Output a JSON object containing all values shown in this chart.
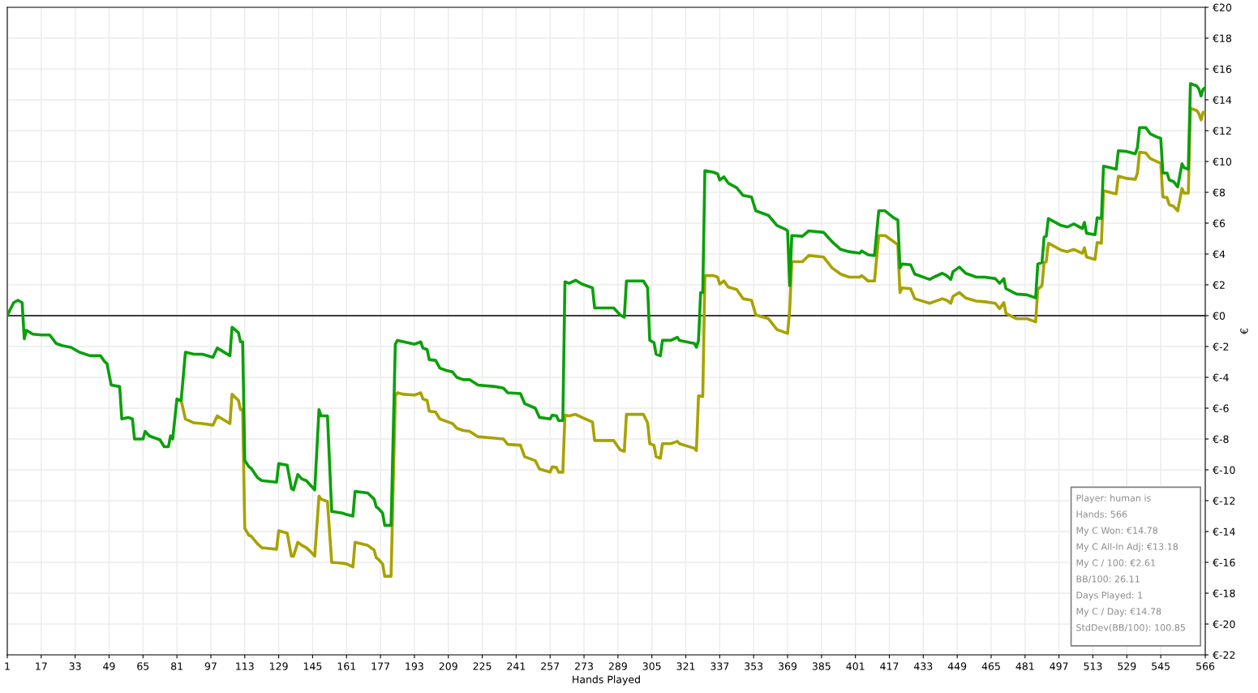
{
  "chart_data": {
    "type": "line",
    "xlabel": "Hands Played",
    "ylabel": "€",
    "xlim": [
      1,
      566
    ],
    "ylim": [
      -22,
      20
    ],
    "xticks": [
      1,
      17,
      33,
      49,
      65,
      81,
      97,
      113,
      129,
      145,
      161,
      177,
      193,
      209,
      225,
      241,
      257,
      273,
      289,
      305,
      321,
      337,
      353,
      369,
      385,
      401,
      417,
      433,
      449,
      465,
      481,
      497,
      513,
      529,
      545,
      566
    ],
    "yticks": [
      {
        "value": -22,
        "label": "€-22"
      },
      {
        "value": -20,
        "label": "€-20"
      },
      {
        "value": -18,
        "label": "€-18"
      },
      {
        "value": -16,
        "label": "€-16"
      },
      {
        "value": -14,
        "label": "€-14"
      },
      {
        "value": -12,
        "label": "€-12"
      },
      {
        "value": -10,
        "label": "€-10"
      },
      {
        "value": -8,
        "label": "€-8"
      },
      {
        "value": -6,
        "label": "€-6"
      },
      {
        "value": -4,
        "label": "€-4"
      },
      {
        "value": -2,
        "label": "€-2"
      },
      {
        "value": 0,
        "label": "€0"
      },
      {
        "value": 2,
        "label": "€2"
      },
      {
        "value": 4,
        "label": "€4"
      },
      {
        "value": 6,
        "label": "€6"
      },
      {
        "value": 8,
        "label": "€8"
      },
      {
        "value": 10,
        "label": "€10"
      },
      {
        "value": 12,
        "label": "€12"
      },
      {
        "value": 14,
        "label": "€14"
      },
      {
        "value": 16,
        "label": "€16"
      },
      {
        "value": 18,
        "label": "€18"
      },
      {
        "value": 20,
        "label": "€20"
      }
    ],
    "grid": true,
    "marker": "none",
    "line_style": "solid",
    "ref_lines": [
      {
        "axis": "y",
        "value": 0,
        "color": "#000000",
        "line_style": "solid"
      }
    ],
    "series": [
      {
        "color": "#a8a200",
        "x": [
          83,
          85,
          89,
          93,
          98,
          100,
          106,
          107,
          110,
          111,
          112,
          113,
          115,
          116,
          119,
          121,
          128,
          129,
          133,
          135,
          136,
          138,
          140,
          142,
          144,
          146,
          148,
          149,
          152,
          154,
          159,
          161,
          164,
          165,
          171,
          174,
          175,
          176,
          178,
          179,
          182,
          184,
          185,
          188,
          193,
          196,
          197,
          199,
          200,
          203,
          205,
          208,
          211,
          213,
          216,
          219,
          223,
          231,
          235,
          237,
          243,
          245,
          250,
          252,
          257,
          258,
          260,
          261,
          263,
          264,
          266,
          269,
          272,
          277,
          278,
          287,
          290,
          292,
          293,
          301,
          303,
          304,
          306,
          307,
          309,
          310,
          314,
          317,
          318,
          325,
          326,
          327,
          329,
          330,
          334,
          336,
          337,
          339,
          341,
          345,
          348,
          352,
          354,
          360,
          364,
          368,
          369,
          370,
          371,
          376,
          379,
          386,
          390,
          394,
          398,
          403,
          404,
          407,
          410,
          412,
          415,
          419,
          421,
          422,
          423,
          427,
          429,
          436,
          438,
          442,
          444,
          446,
          447,
          450,
          453,
          458,
          462,
          467,
          469,
          471,
          472,
          477,
          482,
          486,
          487,
          489,
          490,
          491,
          492,
          498,
          501,
          504,
          508,
          509,
          510,
          514,
          515,
          517,
          518,
          521,
          524,
          525,
          529,
          533,
          534,
          535,
          538,
          540,
          543,
          545,
          546,
          548,
          549,
          551,
          553,
          555,
          556,
          558,
          559,
          562,
          563,
          564,
          565,
          566
        ],
        "values": [
          -5.5,
          -6.7,
          -6.95,
          -7.0,
          -7.1,
          -6.5,
          -7.0,
          -5.1,
          -5.5,
          -6.1,
          -6.1,
          -13.8,
          -14.25,
          -14.3,
          -14.8,
          -15.05,
          -15.15,
          -13.95,
          -14.1,
          -15.6,
          -15.6,
          -14.7,
          -14.9,
          -15.05,
          -15.3,
          -15.6,
          -11.7,
          -11.9,
          -12.05,
          -16.0,
          -16.05,
          -16.1,
          -16.3,
          -14.7,
          -14.9,
          -15.2,
          -15.7,
          -15.8,
          -16.1,
          -16.9,
          -16.9,
          -5.2,
          -5.0,
          -5.1,
          -5.15,
          -5.0,
          -5.4,
          -5.5,
          -6.2,
          -6.25,
          -6.7,
          -6.85,
          -7.0,
          -7.3,
          -7.45,
          -7.5,
          -7.85,
          -7.95,
          -8.0,
          -8.35,
          -8.4,
          -9.15,
          -9.4,
          -9.95,
          -10.15,
          -9.8,
          -9.85,
          -10.15,
          -10.15,
          -6.45,
          -6.5,
          -6.4,
          -6.6,
          -6.9,
          -8.1,
          -8.1,
          -8.7,
          -8.8,
          -6.4,
          -6.4,
          -6.95,
          -8.3,
          -8.4,
          -9.15,
          -9.25,
          -8.3,
          -8.3,
          -8.15,
          -8.3,
          -8.6,
          -8.75,
          -5.2,
          -5.25,
          2.6,
          2.6,
          2.5,
          2.05,
          2.25,
          1.85,
          1.7,
          1.1,
          1.0,
          0.05,
          -0.2,
          -0.9,
          -1.1,
          -1.15,
          0.35,
          3.5,
          3.5,
          3.9,
          3.8,
          3.1,
          2.7,
          2.5,
          2.5,
          2.6,
          2.25,
          2.25,
          5.2,
          5.2,
          4.8,
          4.6,
          1.5,
          1.8,
          1.75,
          1.1,
          0.8,
          0.9,
          1.1,
          1.0,
          0.8,
          1.25,
          1.5,
          1.15,
          0.95,
          0.9,
          0.8,
          0.45,
          0.85,
          0.15,
          -0.2,
          -0.2,
          -0.4,
          1.7,
          1.95,
          3.45,
          3.5,
          4.7,
          4.25,
          4.15,
          4.3,
          4.05,
          4.4,
          3.8,
          3.65,
          4.75,
          4.7,
          8.1,
          8.0,
          7.9,
          9.05,
          8.9,
          8.85,
          9.25,
          10.6,
          10.55,
          10.2,
          10.0,
          9.9,
          7.7,
          7.65,
          7.2,
          7.1,
          6.8,
          8.25,
          7.95,
          7.95,
          13.45,
          13.3,
          13.1,
          12.7,
          13.2,
          13.18
        ]
      },
      {
        "color": "#0aa00a",
        "x": [
          1,
          2,
          4,
          6,
          8,
          9,
          10,
          13,
          17,
          21,
          24,
          27,
          31,
          35,
          40,
          45,
          47,
          48,
          50,
          54,
          55,
          58,
          60,
          61,
          65,
          66,
          68,
          73,
          75,
          77,
          78,
          79,
          81,
          83,
          85,
          89,
          93,
          98,
          100,
          106,
          107,
          110,
          111,
          112,
          113,
          115,
          116,
          119,
          121,
          128,
          129,
          133,
          135,
          136,
          138,
          140,
          142,
          144,
          146,
          148,
          149,
          152,
          154,
          159,
          161,
          164,
          165,
          171,
          174,
          175,
          176,
          178,
          179,
          182,
          184,
          185,
          188,
          193,
          196,
          197,
          199,
          200,
          203,
          205,
          208,
          211,
          213,
          216,
          219,
          223,
          231,
          235,
          237,
          243,
          245,
          250,
          252,
          257,
          258,
          260,
          261,
          263,
          264,
          266,
          269,
          272,
          277,
          278,
          287,
          290,
          292,
          293,
          301,
          303,
          304,
          306,
          307,
          309,
          310,
          314,
          317,
          318,
          325,
          326,
          327,
          328,
          329,
          330,
          334,
          336,
          337,
          339,
          341,
          345,
          348,
          352,
          354,
          360,
          364,
          368,
          369,
          370,
          371,
          376,
          379,
          386,
          390,
          394,
          398,
          403,
          404,
          407,
          410,
          412,
          415,
          419,
          421,
          422,
          423,
          427,
          429,
          436,
          438,
          442,
          444,
          446,
          447,
          450,
          453,
          458,
          462,
          467,
          469,
          471,
          472,
          477,
          482,
          486,
          487,
          489,
          490,
          491,
          492,
          498,
          501,
          504,
          508,
          509,
          510,
          514,
          515,
          517,
          518,
          521,
          524,
          525,
          529,
          533,
          534,
          535,
          538,
          540,
          543,
          545,
          546,
          548,
          549,
          551,
          553,
          555,
          556,
          558,
          559,
          562,
          563,
          564,
          565,
          566
        ],
        "values": [
          0,
          0.3,
          0.84,
          1.0,
          0.84,
          -1.5,
          -0.95,
          -1.2,
          -1.25,
          -1.25,
          -1.8,
          -1.95,
          -2.05,
          -2.37,
          -2.6,
          -2.6,
          -3.0,
          -3.1,
          -4.5,
          -4.6,
          -6.7,
          -6.6,
          -6.7,
          -8.0,
          -8.0,
          -7.5,
          -7.8,
          -8.05,
          -8.5,
          -8.5,
          -7.8,
          -8.0,
          -5.4,
          -5.5,
          -2.37,
          -2.5,
          -2.5,
          -2.7,
          -2.1,
          -2.6,
          -0.75,
          -1.1,
          -1.7,
          -1.7,
          -9.4,
          -9.8,
          -9.9,
          -10.5,
          -10.7,
          -10.8,
          -9.6,
          -9.7,
          -11.2,
          -11.3,
          -10.3,
          -10.6,
          -10.7,
          -11.0,
          -11.3,
          -6.1,
          -6.5,
          -6.5,
          -12.7,
          -12.8,
          -12.9,
          -13.0,
          -11.4,
          -11.5,
          -11.9,
          -12.4,
          -12.5,
          -12.8,
          -13.6,
          -13.6,
          -1.85,
          -1.6,
          -1.7,
          -1.85,
          -1.7,
          -2.1,
          -2.2,
          -2.85,
          -2.9,
          -3.4,
          -3.55,
          -3.65,
          -4.0,
          -4.15,
          -4.15,
          -4.5,
          -4.6,
          -4.7,
          -5.0,
          -5.05,
          -5.7,
          -6.0,
          -6.6,
          -6.7,
          -6.45,
          -6.5,
          -6.8,
          -6.8,
          2.2,
          2.1,
          2.3,
          2.05,
          1.8,
          0.5,
          0.5,
          0.05,
          -0.1,
          2.25,
          2.25,
          1.8,
          -1.6,
          -1.75,
          -2.5,
          -2.6,
          -1.6,
          -1.6,
          -1.4,
          -1.6,
          -1.8,
          -2.05,
          -1.6,
          1.5,
          1.5,
          9.4,
          9.3,
          9.2,
          8.8,
          9.0,
          8.6,
          8.3,
          7.8,
          7.7,
          6.8,
          6.5,
          5.85,
          5.6,
          5.5,
          1.95,
          5.2,
          5.15,
          5.5,
          5.4,
          4.8,
          4.3,
          4.15,
          4.05,
          4.2,
          3.95,
          3.9,
          6.8,
          6.8,
          6.35,
          6.2,
          3.1,
          3.35,
          3.3,
          2.7,
          2.35,
          2.5,
          2.75,
          2.6,
          2.35,
          2.85,
          3.15,
          2.75,
          2.5,
          2.5,
          2.4,
          2.1,
          2.4,
          1.75,
          1.4,
          1.35,
          1.15,
          3.35,
          3.45,
          5.1,
          5.15,
          6.3,
          5.85,
          5.75,
          5.95,
          5.65,
          6.05,
          5.35,
          5.25,
          6.35,
          6.3,
          9.7,
          9.6,
          9.5,
          10.7,
          10.65,
          10.5,
          10.9,
          12.2,
          12.2,
          11.8,
          11.6,
          11.5,
          9.25,
          9.25,
          8.8,
          8.7,
          8.35,
          9.85,
          9.6,
          9.5,
          15.05,
          14.9,
          14.7,
          14.25,
          14.7,
          14.78
        ]
      }
    ],
    "annotations": [
      "Player: human is",
      "Hands: 566",
      "My C Won: €14.78",
      "My C All-In Adj: €13.18",
      "My C / 100: €2.61",
      "BB/100: 26.11",
      "Days Played: 1",
      "My C / Day: €14.78",
      "StdDev(BB/100): 100.85"
    ]
  }
}
